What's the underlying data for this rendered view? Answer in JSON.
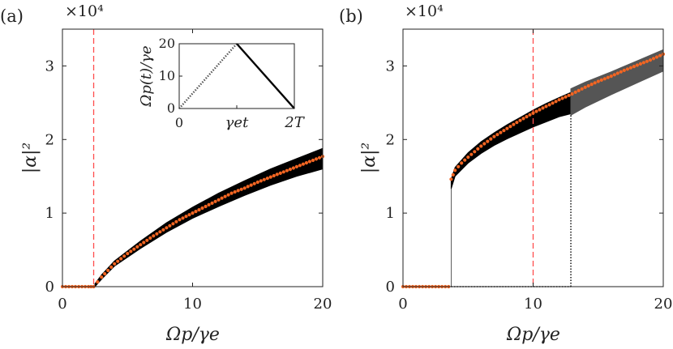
{
  "chart_data": [
    {
      "type": "scatter",
      "panel_label": "(a)",
      "xlabel": "Ωp/γe",
      "ylabel": "|α|²",
      "y_multiplier": "×10⁴",
      "xlim": [
        0,
        20
      ],
      "ylim": [
        0,
        3.5
      ],
      "xticks": [
        "0",
        "10",
        "20"
      ],
      "yticks": [
        "0",
        "1",
        "2",
        "3"
      ],
      "threshold_line": {
        "x": 2.4,
        "color": "#ff4d4d",
        "style": "dashed"
      },
      "band": {
        "color": "#000000",
        "x": [
          2.5,
          3.0,
          4.0,
          6.0,
          8.0,
          10.0,
          12.0,
          14.0,
          16.0,
          18.0,
          20.0
        ],
        "upper": [
          0.04,
          0.16,
          0.35,
          0.62,
          0.87,
          1.08,
          1.27,
          1.44,
          1.6,
          1.74,
          1.88
        ],
        "lower": [
          0.0,
          0.1,
          0.28,
          0.52,
          0.74,
          0.93,
          1.09,
          1.24,
          1.38,
          1.5,
          1.6
        ]
      },
      "series": [
        {
          "color": "#f26522",
          "x": [
            0,
            0.5,
            1.0,
            1.5,
            2.0,
            2.4,
            3.0,
            4.0,
            5.0,
            6.0,
            7.0,
            8.0,
            9.0,
            10.0,
            11.0,
            12.0,
            13.0,
            14.0,
            15.0,
            16.0,
            17.0,
            18.0,
            19.0,
            20.0
          ],
          "values": [
            0,
            0,
            0,
            0,
            0,
            0,
            0.13,
            0.31,
            0.45,
            0.57,
            0.69,
            0.8,
            0.91,
            1.0,
            1.09,
            1.18,
            1.27,
            1.34,
            1.42,
            1.49,
            1.56,
            1.63,
            1.7,
            1.77
          ]
        }
      ],
      "inset": {
        "xlabel": "γet",
        "ylabel": "Ωp(t)/γe",
        "xticks": [
          "0",
          "γet",
          "2T"
        ],
        "yticks": [
          "0",
          "10",
          "20"
        ],
        "xlim": [
          0,
          2
        ],
        "ylim": [
          0,
          20
        ],
        "ramp_up": {
          "x": [
            0,
            1
          ],
          "y": [
            0,
            20
          ],
          "style": "dotted",
          "color": "#555555"
        },
        "ramp_down": {
          "x": [
            1,
            2
          ],
          "y": [
            20,
            0
          ],
          "style": "solid",
          "color": "#000000"
        }
      }
    },
    {
      "type": "scatter",
      "panel_label": "(b)",
      "xlabel": "Ωp/γe",
      "ylabel": "|α|²",
      "y_multiplier": "×10⁴",
      "xlim": [
        0,
        20
      ],
      "ylim": [
        0,
        3.5
      ],
      "xticks": [
        "0",
        "10",
        "20"
      ],
      "yticks": [
        "0",
        "1",
        "2",
        "3"
      ],
      "threshold_line": {
        "x": 10.0,
        "color": "#ff4d4d",
        "style": "dashed"
      },
      "jump_up": {
        "x": 3.7,
        "from": 0,
        "to": 1.33
      },
      "jump_down": {
        "x": 12.9,
        "from": 0,
        "to": 2.33,
        "style": "dotted"
      },
      "lower_branch": {
        "x": [
          3.7,
          12.9
        ],
        "y": 0,
        "style": "dotted"
      },
      "band": {
        "color": "#000000",
        "x": [
          3.7,
          4.0,
          5.0,
          6.0,
          7.0,
          8.0,
          9.0,
          10.0,
          11.0,
          12.0,
          12.9
        ],
        "upper": [
          1.46,
          1.62,
          1.82,
          1.97,
          2.09,
          2.2,
          2.3,
          2.4,
          2.49,
          2.57,
          2.64
        ],
        "lower": [
          1.33,
          1.5,
          1.68,
          1.81,
          1.92,
          2.01,
          2.09,
          2.17,
          2.24,
          2.31,
          2.35
        ]
      },
      "band_gray": {
        "color": "#555555",
        "x": [
          12.9,
          14.0,
          16.0,
          18.0,
          20.0
        ],
        "upper": [
          2.69,
          2.78,
          2.92,
          3.07,
          3.22
        ],
        "lower": [
          2.33,
          2.44,
          2.61,
          2.77,
          2.93
        ]
      },
      "series": [
        {
          "color": "#f26522",
          "x": [
            0,
            0.5,
            1.0,
            1.5,
            2.0,
            2.5,
            3.0,
            3.5,
            3.7,
            4.0,
            4.5,
            5.0,
            6.0,
            7.0,
            8.0,
            9.0,
            10.0,
            11.0,
            12.0,
            13.0,
            14.0,
            15.0,
            16.0,
            17.0,
            18.0,
            19.0,
            20.0
          ],
          "values": [
            0,
            0,
            0,
            0,
            0,
            0,
            0,
            0,
            1.46,
            1.58,
            1.68,
            1.76,
            1.91,
            2.04,
            2.15,
            2.26,
            2.36,
            2.45,
            2.54,
            2.62,
            2.71,
            2.79,
            2.86,
            2.94,
            3.01,
            3.08,
            3.16
          ]
        }
      ]
    }
  ]
}
